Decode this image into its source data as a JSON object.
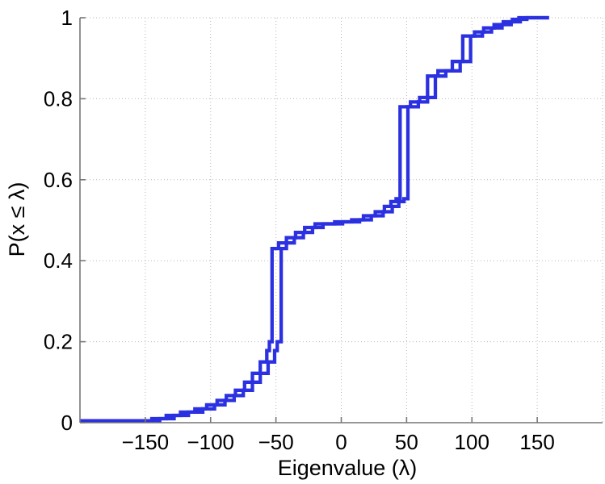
{
  "chart_data": {
    "type": "line",
    "subtype": "step-ecdf",
    "title": "",
    "xlabel": "Eigenvalue (λ)",
    "ylabel": "P(x ≤ λ)",
    "xlim": [
      -200,
      200
    ],
    "ylim": [
      0,
      1
    ],
    "x_ticks": [
      -150,
      -100,
      -50,
      0,
      50,
      100,
      150
    ],
    "x_tick_labels": [
      "−150",
      "−100",
      "−50",
      "0",
      "50",
      "100",
      "150"
    ],
    "y_ticks": [
      0,
      0.2,
      0.4,
      0.6,
      0.8,
      1
    ],
    "y_tick_labels": [
      "0",
      "0.2",
      "0.4",
      "0.6",
      "0.8",
      "1"
    ],
    "grid": true,
    "grid_x": [
      -150,
      -100,
      -50,
      0,
      50,
      100,
      150,
      200
    ],
    "grid_y": [
      0.2,
      0.4,
      0.6,
      0.8,
      1
    ],
    "grid_color": "#b8b8b8",
    "axis_color": "#777777",
    "line_color": "#2b31e0",
    "line_width": 4.3,
    "series": [
      {
        "name": "ecdf-curve-1",
        "start_x": -200,
        "end_x": 159,
        "steps": [
          [
            -145,
            0.01
          ],
          [
            -134,
            0.018
          ],
          [
            -123,
            0.026
          ],
          [
            -112,
            0.034
          ],
          [
            -103,
            0.044
          ],
          [
            -95,
            0.055
          ],
          [
            -88,
            0.067
          ],
          [
            -81,
            0.08
          ],
          [
            -74,
            0.1
          ],
          [
            -68,
            0.122
          ],
          [
            -62,
            0.15
          ],
          [
            -57,
            0.178
          ],
          [
            -55,
            0.2
          ],
          [
            -53,
            0.43
          ],
          [
            -48,
            0.444
          ],
          [
            -42,
            0.457
          ],
          [
            -35,
            0.47
          ],
          [
            -28,
            0.482
          ],
          [
            -20,
            0.491
          ],
          [
            -5,
            0.496
          ],
          [
            8,
            0.501
          ],
          [
            17,
            0.511
          ],
          [
            26,
            0.521
          ],
          [
            33,
            0.534
          ],
          [
            38,
            0.546
          ],
          [
            42,
            0.553
          ],
          [
            45,
            0.78
          ],
          [
            53,
            0.792
          ],
          [
            60,
            0.803
          ],
          [
            66,
            0.856
          ],
          [
            74,
            0.869
          ],
          [
            85,
            0.892
          ],
          [
            93,
            0.955
          ],
          [
            102,
            0.965
          ],
          [
            109,
            0.975
          ],
          [
            117,
            0.983
          ],
          [
            124,
            0.99
          ],
          [
            131,
            0.996
          ],
          [
            136,
            1.0
          ]
        ]
      },
      {
        "name": "ecdf-curve-2",
        "start_x": -200,
        "end_x": 159,
        "steps": [
          [
            -139,
            0.01
          ],
          [
            -128,
            0.018
          ],
          [
            -117,
            0.026
          ],
          [
            -106,
            0.034
          ],
          [
            -97,
            0.044
          ],
          [
            -89,
            0.055
          ],
          [
            -82,
            0.067
          ],
          [
            -75,
            0.08
          ],
          [
            -68,
            0.1
          ],
          [
            -62,
            0.122
          ],
          [
            -56,
            0.15
          ],
          [
            -51,
            0.178
          ],
          [
            -49,
            0.2
          ],
          [
            -46,
            0.43
          ],
          [
            -42,
            0.444
          ],
          [
            -36,
            0.457
          ],
          [
            -29,
            0.47
          ],
          [
            -22,
            0.482
          ],
          [
            -14,
            0.491
          ],
          [
            1,
            0.496
          ],
          [
            14,
            0.501
          ],
          [
            23,
            0.511
          ],
          [
            32,
            0.521
          ],
          [
            39,
            0.534
          ],
          [
            44,
            0.546
          ],
          [
            48,
            0.553
          ],
          [
            51,
            0.78
          ],
          [
            59,
            0.792
          ],
          [
            66,
            0.803
          ],
          [
            72,
            0.856
          ],
          [
            80,
            0.869
          ],
          [
            91,
            0.892
          ],
          [
            99,
            0.955
          ],
          [
            108,
            0.965
          ],
          [
            115,
            0.975
          ],
          [
            123,
            0.983
          ],
          [
            130,
            0.99
          ],
          [
            137,
            0.996
          ],
          [
            142,
            1.0
          ]
        ]
      }
    ]
  }
}
